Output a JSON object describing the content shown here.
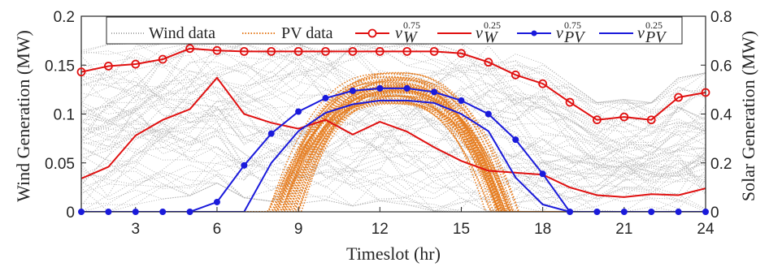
{
  "chart_data": {
    "type": "line",
    "xlabel": "Timeslot (hr)",
    "ylabel_left": "Wind Generation (MW)",
    "ylabel_right": "Solar Generation (MW)",
    "xlim": [
      1,
      24
    ],
    "ylim_left": [
      0,
      0.2
    ],
    "ylim_right": [
      0,
      0.8
    ],
    "xticks": [
      3,
      6,
      9,
      12,
      15,
      18,
      21,
      24
    ],
    "yticks_left": [
      "0",
      "0.05",
      "0.1",
      "0.15",
      "0.2"
    ],
    "yticks_right": [
      "0",
      "0.2",
      "0.4",
      "0.6",
      "0.8"
    ],
    "legend_position": "top",
    "grid": false,
    "colors": {
      "wind_data": "#b4b4b4",
      "pv_data": "#e67e22",
      "wind_quantiles": "#e01010",
      "pv_quantiles": "#1a1adb"
    },
    "legend": [
      {
        "label": "Wind data",
        "style": "dotted-gray"
      },
      {
        "label": "PV data",
        "style": "dotted-orange"
      },
      {
        "base": "v",
        "sub": "W",
        "sup": "0.75",
        "style": "red-circle"
      },
      {
        "base": "v",
        "sub": "W",
        "sup": "0.25",
        "style": "red-line"
      },
      {
        "base": "v",
        "sub": "PV",
        "sup": "0.75",
        "style": "blue-star"
      },
      {
        "base": "v",
        "sub": "PV",
        "sup": "0.25",
        "style": "blue-line"
      }
    ],
    "x": [
      1,
      2,
      3,
      4,
      5,
      6,
      7,
      8,
      9,
      10,
      11,
      12,
      13,
      14,
      15,
      16,
      17,
      18,
      19,
      20,
      21,
      22,
      23,
      24
    ],
    "series": [
      {
        "name": "v_W^0.75",
        "axis": "left",
        "color": "#e01010",
        "marker": "circle",
        "values": [
          0.143,
          0.149,
          0.151,
          0.156,
          0.167,
          0.165,
          0.164,
          0.164,
          0.164,
          0.164,
          0.164,
          0.164,
          0.164,
          0.164,
          0.162,
          0.153,
          0.14,
          0.131,
          0.112,
          0.094,
          0.097,
          0.094,
          0.117,
          0.122
        ]
      },
      {
        "name": "v_W^0.25",
        "axis": "left",
        "color": "#e01010",
        "marker": "none",
        "values": [
          0.034,
          0.046,
          0.078,
          0.094,
          0.105,
          0.137,
          0.1,
          0.091,
          0.085,
          0.094,
          0.079,
          0.092,
          0.082,
          0.066,
          0.052,
          0.042,
          0.04,
          0.038,
          0.025,
          0.017,
          0.015,
          0.018,
          0.017,
          0.024
        ]
      },
      {
        "name": "v_PV^0.75",
        "axis": "right",
        "color": "#1a1adb",
        "marker": "star",
        "values": [
          0,
          0,
          0,
          0,
          0,
          0.04,
          0.19,
          0.32,
          0.41,
          0.465,
          0.495,
          0.505,
          0.505,
          0.49,
          0.455,
          0.4,
          0.295,
          0.155,
          0,
          0,
          0,
          0,
          0,
          0
        ]
      },
      {
        "name": "v_PV^0.25",
        "axis": "right",
        "color": "#1a1adb",
        "marker": "none",
        "values": [
          0,
          0,
          0,
          0,
          0,
          0,
          0,
          0.2,
          0.33,
          0.405,
          0.44,
          0.455,
          0.455,
          0.445,
          0.4,
          0.33,
          0.14,
          0.03,
          0,
          0,
          0,
          0,
          0,
          0
        ]
      }
    ]
  }
}
